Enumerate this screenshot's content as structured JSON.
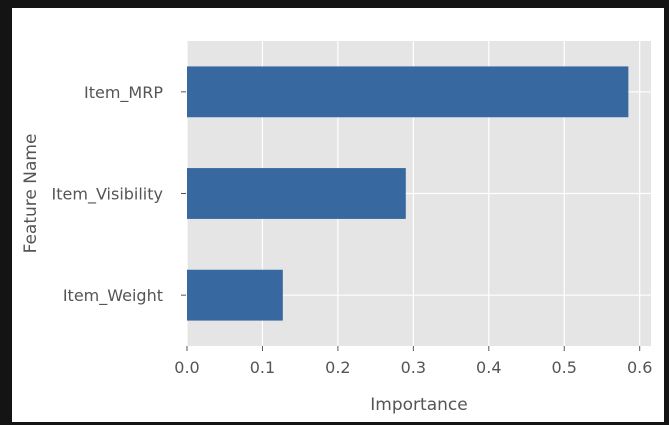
{
  "chart_data": {
    "type": "bar",
    "orientation": "horizontal",
    "categories": [
      "Item_MRP",
      "Item_Visibility",
      "Item_Weight"
    ],
    "values": [
      0.585,
      0.29,
      0.127
    ],
    "xlabel": "Importance",
    "ylabel": "Feature Name",
    "xlim": [
      0.0,
      0.615
    ],
    "xticks": [
      0.0,
      0.1,
      0.2,
      0.3,
      0.4,
      0.5,
      0.6
    ],
    "xtick_labels": [
      "0.0",
      "0.1",
      "0.2",
      "0.3",
      "0.4",
      "0.5",
      "0.6"
    ],
    "grid": true,
    "bar_color": "#3768a0",
    "plot_background": "#e5e5e5",
    "grid_color": "#ffffff",
    "text_color": "#555555"
  }
}
